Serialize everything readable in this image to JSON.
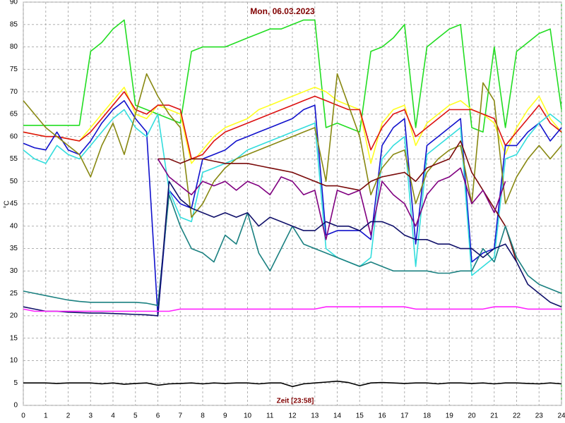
{
  "chart_data": {
    "type": "line",
    "title": "Mon, 06.03.2023",
    "x_label": "Zeit [23:58]",
    "y_label": "°C",
    "x": [
      0,
      0.5,
      1,
      1.5,
      2,
      2.5,
      3,
      3.5,
      4,
      4.5,
      5,
      5.5,
      6,
      6.5,
      7,
      7.5,
      8,
      8.5,
      9,
      9.5,
      10,
      10.5,
      11,
      11.5,
      12,
      12.5,
      13,
      13.5,
      14,
      14.5,
      15,
      15.5,
      16,
      16.5,
      17,
      17.5,
      18,
      18.5,
      19,
      19.5,
      20,
      20.5,
      21,
      21.5,
      22,
      22.5,
      23,
      23.5,
      24
    ],
    "xlim": [
      0,
      24
    ],
    "xticks": [
      0,
      1,
      2,
      3,
      4,
      5,
      6,
      7,
      8,
      9,
      10,
      11,
      12,
      13,
      14,
      15,
      16,
      17,
      18,
      19,
      20,
      21,
      22,
      23,
      24
    ],
    "ylim": [
      0,
      90
    ],
    "yticks": [
      0,
      5,
      10,
      15,
      20,
      25,
      30,
      35,
      40,
      45,
      50,
      55,
      60,
      65,
      70,
      75,
      80,
      85,
      90
    ],
    "grid": true,
    "series": [
      {
        "color": "#22dd22",
        "values": [
          62.5,
          62.5,
          62.5,
          62.5,
          62.5,
          62.5,
          79,
          81,
          84,
          86,
          67,
          66,
          65,
          64,
          63,
          79,
          80,
          80,
          80,
          81,
          82,
          83,
          84,
          84,
          85,
          86,
          86,
          62,
          63,
          62,
          61,
          79,
          80,
          82,
          85,
          62,
          80,
          82,
          84,
          85,
          62,
          61,
          80,
          62,
          79,
          81,
          83,
          84,
          66
        ]
      },
      {
        "color": "#ffff22",
        "values": [
          61,
          60.5,
          60,
          60,
          59.5,
          59,
          62,
          65,
          68,
          71,
          65,
          64,
          67,
          66,
          65,
          54,
          57,
          60,
          62,
          63,
          64,
          66,
          67,
          68,
          69,
          70,
          71,
          70,
          68,
          67,
          66,
          54,
          63,
          66,
          67,
          58,
          63,
          65,
          67,
          68,
          66,
          65,
          63,
          56,
          62,
          66,
          69,
          64,
          61
        ]
      },
      {
        "color": "#dd1111",
        "values": [
          61,
          60.5,
          60,
          60,
          59.5,
          59,
          61,
          64,
          67,
          70,
          66,
          65,
          67,
          67,
          66,
          55,
          56,
          59,
          61,
          62,
          63,
          64,
          65,
          66,
          67,
          68,
          69,
          68,
          67,
          66,
          66,
          57,
          62,
          65,
          66,
          60,
          62,
          64,
          66,
          66,
          66,
          65,
          64,
          58,
          61,
          64,
          67,
          63,
          61
        ]
      },
      {
        "color": "#1111cc",
        "values": [
          58.5,
          57.5,
          57,
          61,
          57,
          56,
          59,
          63,
          66,
          68,
          64,
          61,
          20,
          48,
          45,
          44,
          55,
          56,
          57,
          59,
          60,
          61,
          62,
          63,
          64,
          66,
          67,
          38,
          39,
          39,
          39,
          37,
          58,
          62,
          64,
          36,
          58,
          60,
          62,
          64,
          32,
          34,
          35,
          58,
          58,
          61,
          63,
          59,
          62
        ]
      },
      {
        "color": "#33dddd",
        "values": [
          57,
          55,
          54,
          58,
          56,
          55,
          58,
          61,
          64,
          66,
          62,
          60,
          65,
          48,
          42,
          41,
          52,
          53,
          54,
          55,
          57,
          58,
          59,
          60,
          61,
          62,
          63,
          35,
          33,
          32,
          31,
          33,
          55,
          58,
          60,
          31,
          56,
          58,
          60,
          62,
          29,
          31,
          33,
          55,
          56,
          60,
          63,
          65,
          63
        ]
      },
      {
        "color": "#888811",
        "values": [
          68,
          65,
          62,
          60,
          58,
          56,
          51,
          58,
          63,
          56,
          65,
          74,
          69,
          65,
          62,
          42,
          45,
          50,
          53,
          55,
          56,
          57,
          58,
          59,
          60,
          61,
          62,
          50,
          74,
          67,
          60,
          47,
          53,
          56,
          57,
          45,
          52,
          55,
          57,
          58,
          45,
          72,
          68,
          45,
          51,
          55,
          58,
          55,
          58
        ]
      },
      {
        "color": "#7a0a0a",
        "values": [
          null,
          null,
          null,
          null,
          null,
          null,
          null,
          null,
          null,
          null,
          null,
          null,
          55,
          55,
          54,
          55,
          55,
          54.5,
          54,
          54,
          54,
          53.5,
          53,
          52.5,
          52,
          51,
          50,
          49,
          49,
          48.5,
          48,
          50,
          51,
          51.5,
          52,
          50,
          53,
          54,
          55,
          59,
          52,
          48,
          44,
          40,
          32,
          null,
          null,
          null,
          null
        ]
      },
      {
        "color": "#800080",
        "values": [
          null,
          null,
          null,
          null,
          null,
          null,
          null,
          null,
          null,
          null,
          null,
          null,
          55,
          51,
          49,
          47,
          50,
          49,
          50,
          48,
          50,
          49,
          47,
          51,
          50,
          47,
          48,
          37,
          48,
          47,
          48,
          38,
          50,
          47,
          45,
          40,
          47,
          50,
          51,
          53,
          45,
          48,
          43,
          50,
          null,
          null,
          null,
          null,
          null
        ]
      },
      {
        "color": "#1a8080",
        "values": [
          25.5,
          25,
          24.5,
          24,
          23.5,
          23.2,
          23,
          23,
          23,
          23,
          23,
          22.8,
          22.3,
          47,
          40,
          35,
          34,
          32,
          38,
          36,
          43,
          34,
          30,
          35,
          40,
          36,
          35,
          34,
          33,
          32,
          31,
          32,
          31,
          30,
          30,
          30,
          30,
          29.5,
          29.5,
          30,
          30,
          35,
          32,
          40,
          33,
          29,
          27,
          26,
          25
        ]
      },
      {
        "color": "#10106a",
        "values": [
          22,
          21.5,
          21,
          21,
          20.8,
          20.7,
          20.6,
          20.6,
          20.5,
          20.4,
          20.3,
          20.2,
          20,
          50,
          46,
          44,
          43,
          42,
          43,
          42,
          43,
          40,
          42,
          41,
          40,
          39,
          39,
          41,
          40,
          40,
          39,
          41,
          41,
          40,
          38,
          37,
          37,
          36,
          36,
          35,
          35,
          33,
          35,
          36,
          32,
          27,
          25,
          23,
          22
        ]
      },
      {
        "color": "#ff22ff",
        "values": [
          21.5,
          21,
          21,
          21,
          21,
          21,
          21,
          21,
          21,
          21,
          21,
          21,
          21,
          21,
          21.5,
          21.5,
          21.5,
          21.5,
          21.5,
          21.5,
          21.5,
          21.5,
          21.5,
          21.5,
          21.5,
          21.5,
          21.5,
          22,
          22,
          22,
          22,
          22,
          22,
          22,
          22,
          21.5,
          21.5,
          21.5,
          21.5,
          21.5,
          21.5,
          21.5,
          22,
          22,
          22,
          21.5,
          21.5,
          21.5,
          21.5
        ]
      },
      {
        "color": "#000000",
        "values": [
          5,
          5,
          5,
          4.9,
          5,
          5,
          5,
          4.8,
          5,
          4.7,
          4.9,
          5,
          4.5,
          4.8,
          4.9,
          5,
          4.8,
          5,
          4.9,
          5,
          5,
          4.8,
          5,
          5,
          4.2,
          4.8,
          5,
          5.2,
          5.4,
          5.1,
          4.4,
          5,
          5.1,
          5,
          4.9,
          5,
          5,
          4.8,
          5,
          5,
          4.9,
          5,
          4.8,
          5,
          5,
          4.9,
          4.8,
          5,
          4.8
        ]
      }
    ]
  }
}
